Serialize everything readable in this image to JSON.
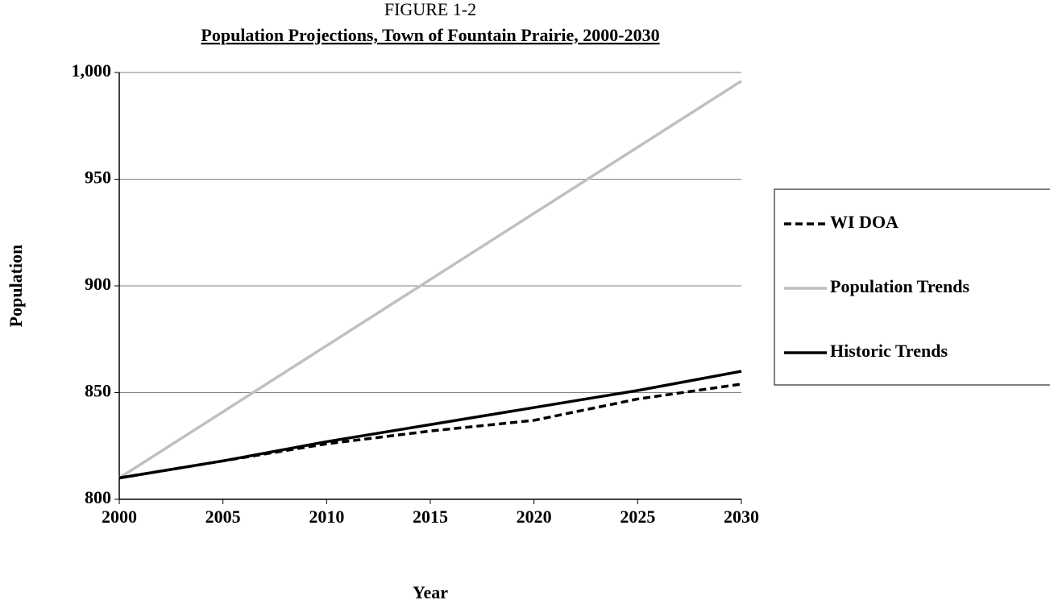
{
  "chart_data": {
    "type": "line",
    "title": "FIGURE 1-2",
    "subtitle": "Population Projections, Town of Fountain Prairie, 2000-2030",
    "x_label": "Year",
    "y_label": "Population",
    "x": [
      2000,
      2005,
      2010,
      2015,
      2020,
      2025,
      2030
    ],
    "series": [
      {
        "name": "WI DOA",
        "color": "#000000",
        "dashed": true,
        "values": [
          810,
          818,
          826,
          832,
          837,
          847,
          854
        ]
      },
      {
        "name": "Population Trends",
        "color": "#c0c0c0",
        "dashed": false,
        "values": [
          810,
          841,
          872,
          903,
          934,
          965,
          996
        ]
      },
      {
        "name": "Historic Trends",
        "color": "#000000",
        "dashed": false,
        "values": [
          810,
          818,
          827,
          835,
          843,
          851,
          860
        ]
      }
    ],
    "xlim": [
      2000,
      2030
    ],
    "xticks": [
      2000,
      2005,
      2010,
      2015,
      2020,
      2025,
      2030
    ],
    "ylim": [
      800,
      1000
    ],
    "yticks": [
      800,
      850,
      900,
      950,
      {
        "value": 1000,
        "label": "1,000"
      }
    ],
    "grid": true,
    "legend": "right"
  }
}
